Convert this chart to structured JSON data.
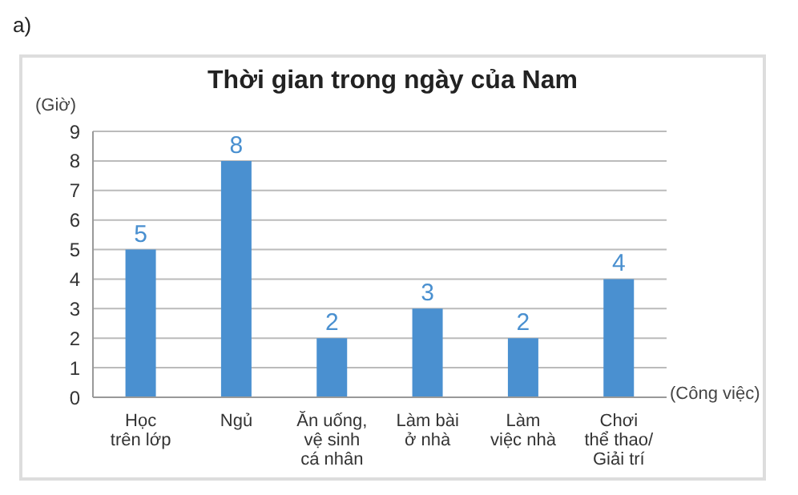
{
  "chart_data": {
    "type": "bar",
    "title": "Thời gian trong ngày của Nam",
    "xlabel": "(Công việc)",
    "ylabel": "(Giờ)",
    "annotations": [
      "a)"
    ],
    "categories": [
      "Học\ntrên lớp",
      "Ngủ",
      "Ăn uống,\nvệ sinh\ncá nhân",
      "Làm bài\nở nhà",
      "Làm\nviệc nhà",
      "Chơi\nthể thao/\nGiải trí"
    ],
    "values": [
      5,
      8,
      2,
      3,
      2,
      4
    ],
    "color": "#4a90d0",
    "ylim": [
      0,
      9
    ],
    "yticks": [
      0,
      1,
      2,
      3,
      4,
      5,
      6,
      7,
      8,
      9
    ],
    "grid": "y",
    "data_labels": true
  }
}
